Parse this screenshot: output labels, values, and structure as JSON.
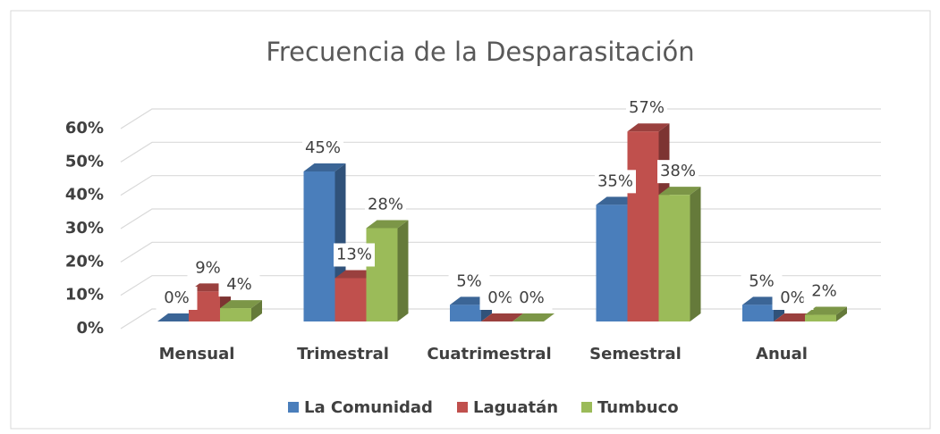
{
  "chart_data": {
    "type": "bar3d",
    "title": "Frecuencia de la Desparasitación",
    "categories": [
      "Mensual",
      "Trimestral",
      "Cuatrimestral",
      "Semestral",
      "Anual"
    ],
    "series": [
      {
        "name": "La Comunidad",
        "color": "#4a7ebb",
        "values": [
          0,
          45,
          5,
          35,
          5
        ],
        "value_labels": [
          "0%",
          "45%",
          "5%",
          "35%",
          "5%"
        ]
      },
      {
        "name": "Laguatán",
        "color": "#c0504d",
        "values": [
          9,
          13,
          0,
          57,
          0
        ],
        "value_labels": [
          "9%",
          "13%",
          "0%",
          "57%",
          "0%"
        ]
      },
      {
        "name": "Tumbuco",
        "color": "#9bbb59",
        "values": [
          4,
          28,
          0,
          38,
          2
        ],
        "value_labels": [
          "4%",
          "28%",
          "0%",
          "38%",
          "2%"
        ]
      }
    ],
    "ylim": [
      0,
      60
    ],
    "yticks": [
      {
        "value": 0,
        "label": "0%"
      },
      {
        "value": 10,
        "label": "10%"
      },
      {
        "value": 20,
        "label": "20%"
      },
      {
        "value": 30,
        "label": "30%"
      },
      {
        "value": 40,
        "label": "40%"
      },
      {
        "value": 50,
        "label": "50%"
      },
      {
        "value": 60,
        "label": "60%"
      }
    ],
    "grid": true,
    "legend": "bottom"
  }
}
